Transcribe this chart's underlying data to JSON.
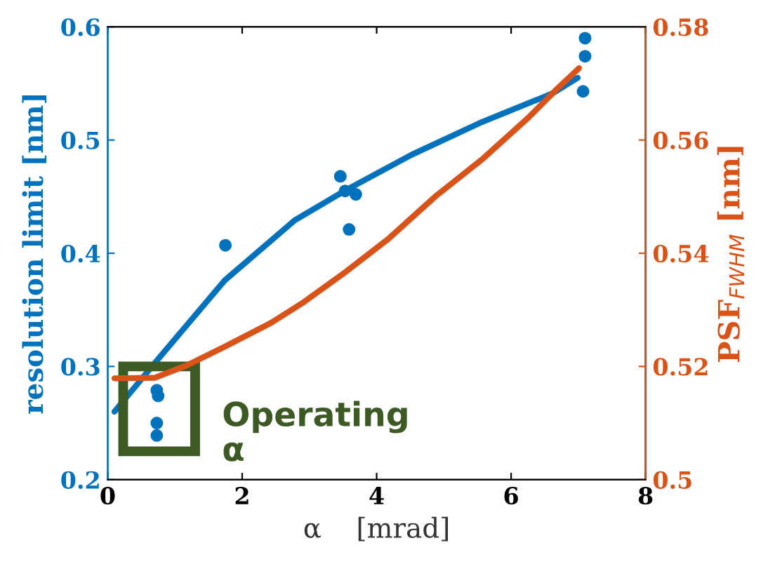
{
  "chart_data": {
    "type": "scatter",
    "xlabel": "α    [mrad]",
    "ylabel": "resolution limit [nm]",
    "y2label": "PSF$_{FWHM}$ [nm]",
    "xlim": [
      0,
      8
    ],
    "xticks": [
      0,
      2,
      4,
      6,
      8
    ],
    "ylim": [
      0.2,
      0.6
    ],
    "yticks": [
      0.2,
      0.3,
      0.4,
      0.5,
      0.6
    ],
    "y2lim": [
      0.5,
      0.58
    ],
    "y2ticks": [
      0.5,
      0.52,
      0.54,
      0.56,
      0.58
    ],
    "grid": false,
    "legend": false,
    "series": [
      {
        "marker": "circle",
        "color": "#0072bd",
        "x": [
          7.1,
          7.1,
          7.07,
          3.46,
          3.53,
          3.69,
          3.59,
          1.75,
          0.73,
          0.75,
          0.73,
          0.73
        ],
        "values": [
          0.59,
          0.574,
          0.543,
          0.468,
          0.455,
          0.452,
          0.421,
          0.407,
          0.279,
          0.274,
          0.25,
          0.239
        ]
      },
      {
        "type": "line",
        "color": "#0072bd",
        "x": [
          0.1,
          0.7,
          1.74,
          2.78,
          3.55,
          4.52,
          5.57,
          6.61,
          6.99
        ],
        "values": [
          0.26,
          0.303,
          0.376,
          0.429,
          0.456,
          0.487,
          0.516,
          0.541,
          0.555
        ]
      },
      {
        "type": "line",
        "color": "#d95319",
        "axis": "y2",
        "x": [
          0.1,
          0.7,
          1.18,
          1.74,
          2.43,
          2.92,
          3.55,
          4.17,
          4.87,
          5.57,
          6.26,
          6.68,
          7.01
        ],
        "values": [
          0.5179,
          0.518,
          0.5202,
          0.5235,
          0.5277,
          0.5314,
          0.5368,
          0.5425,
          0.55,
          0.5566,
          0.564,
          0.569,
          0.5727
        ]
      }
    ],
    "annotations": [
      {
        "text": "Operating\nα",
        "x": 0.75,
        "y": 0.26
      }
    ]
  }
}
